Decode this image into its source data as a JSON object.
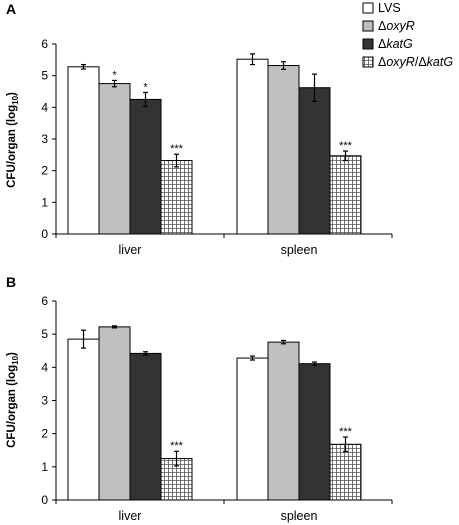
{
  "chart_data": [
    {
      "panel": "A",
      "type": "bar",
      "categories": [
        "liver",
        "spleen"
      ],
      "ylabel": "CFU/organ (log10)",
      "ylim": [
        0,
        6
      ],
      "yticks": [
        0,
        1,
        2,
        3,
        4,
        5,
        6
      ],
      "series": [
        {
          "name": "LVS",
          "values": [
            5.28,
            5.52
          ],
          "errors": [
            0.07,
            0.17
          ],
          "sig": [
            "",
            ""
          ]
        },
        {
          "name": "ΔoxyR",
          "values": [
            4.75,
            5.32
          ],
          "errors": [
            0.1,
            0.12
          ],
          "sig": [
            "*",
            ""
          ]
        },
        {
          "name": "ΔkatG",
          "values": [
            4.25,
            4.62
          ],
          "errors": [
            0.22,
            0.43
          ],
          "sig": [
            "*",
            ""
          ]
        },
        {
          "name": "ΔoxyR/ΔkatG",
          "values": [
            2.32,
            2.47
          ],
          "errors": [
            0.2,
            0.15
          ],
          "sig": [
            "***",
            "***"
          ]
        }
      ]
    },
    {
      "panel": "B",
      "type": "bar",
      "categories": [
        "liver",
        "spleen"
      ],
      "ylabel": "CFU/organ (log10)",
      "ylim": [
        0,
        6
      ],
      "yticks": [
        0,
        1,
        2,
        3,
        4,
        5,
        6
      ],
      "series": [
        {
          "name": "LVS",
          "values": [
            4.85,
            4.28
          ],
          "errors": [
            0.27,
            0.06
          ],
          "sig": [
            "",
            ""
          ]
        },
        {
          "name": "ΔoxyR",
          "values": [
            5.22,
            4.76
          ],
          "errors": [
            0.03,
            0.05
          ],
          "sig": [
            "",
            ""
          ]
        },
        {
          "name": "ΔkatG",
          "values": [
            4.42,
            4.11
          ],
          "errors": [
            0.05,
            0.05
          ],
          "sig": [
            "",
            ""
          ]
        },
        {
          "name": "ΔoxyR/ΔkatG",
          "values": [
            1.25,
            1.68
          ],
          "errors": [
            0.22,
            0.22
          ],
          "sig": [
            "***",
            "***"
          ]
        }
      ]
    }
  ],
  "legend": {
    "placement": "top-right",
    "entries": [
      {
        "prefix": "",
        "italic": "",
        "text": "LVS",
        "fill": "white"
      },
      {
        "prefix": "Δ",
        "italic": "oxyR",
        "text": "",
        "fill": "lightgray"
      },
      {
        "prefix": "Δ",
        "italic": "katG",
        "text": "",
        "fill": "darkgray"
      },
      {
        "prefix": "Δ",
        "italic": "oxyR",
        "text": "/Δ",
        "italic2": "katG",
        "fill": "grid"
      }
    ]
  },
  "colors": {
    "lvs": "#ffffff",
    "oxyR": "#c0c0c0",
    "katG": "#333333",
    "double": "#ffffff",
    "outline": "#000000"
  }
}
